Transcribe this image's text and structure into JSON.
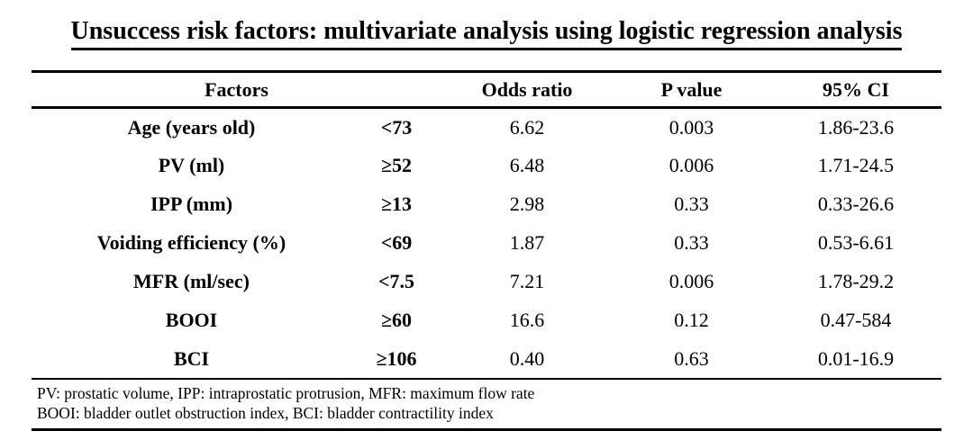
{
  "title": "Unsuccess risk factors: multivariate analysis using logistic regression analysis",
  "table": {
    "headers": {
      "factors": "Factors",
      "odds_ratio": "Odds ratio",
      "p_value": "P value",
      "ci": "95% CI"
    },
    "rows": [
      {
        "factor": "Age (years old)",
        "threshold": "<73",
        "odds_ratio": "6.62",
        "p_value": "0.003",
        "ci": "1.86-23.6"
      },
      {
        "factor": "PV (ml)",
        "threshold": "≥52",
        "odds_ratio": "6.48",
        "p_value": "0.006",
        "ci": "1.71-24.5"
      },
      {
        "factor": "IPP (mm)",
        "threshold": "≥13",
        "odds_ratio": "2.98",
        "p_value": "0.33",
        "ci": "0.33-26.6"
      },
      {
        "factor": "Voiding efficiency (%)",
        "threshold": "<69",
        "odds_ratio": "1.87",
        "p_value": "0.33",
        "ci": "0.53-6.61"
      },
      {
        "factor": "MFR (ml/sec)",
        "threshold": "<7.5",
        "odds_ratio": "7.21",
        "p_value": "0.006",
        "ci": "1.78-29.2"
      },
      {
        "factor": "BOOI",
        "threshold": "≥60",
        "odds_ratio": "16.6",
        "p_value": "0.12",
        "ci": "0.47-584"
      },
      {
        "factor": "BCI",
        "threshold": "≥106",
        "odds_ratio": "0.40",
        "p_value": "0.63",
        "ci": "0.01-16.9"
      }
    ],
    "footnotes": [
      "PV: prostatic volume, IPP: intraprostatic protrusion, MFR: maximum flow rate",
      "BOOI: bladder outlet obstruction index, BCI: bladder contractility index"
    ]
  },
  "colors": {
    "text": "#000000",
    "background": "#ffffff",
    "rule": "#000000"
  }
}
